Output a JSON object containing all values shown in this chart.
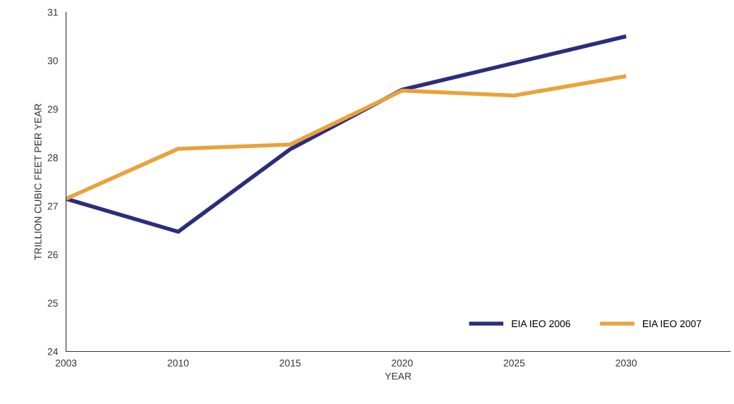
{
  "chart_data": {
    "type": "line",
    "xlabel": "YEAR",
    "ylabel": "TRILLION CUBIC FEET PER YEAR",
    "categories": [
      "2003",
      "2010",
      "2015",
      "2020",
      "2025",
      "2030"
    ],
    "series": [
      {
        "name": "EIA IEO 2006",
        "color": "#2b2d7c",
        "values": [
          27.15,
          26.47,
          28.17,
          29.4,
          29.95,
          30.5
        ]
      },
      {
        "name": "EIA IEO 2007",
        "color": "#e8a33c",
        "values": [
          27.15,
          28.18,
          28.27,
          29.38,
          29.28,
          29.68
        ]
      }
    ],
    "ylim": [
      24,
      31
    ],
    "yticks": [
      24,
      25,
      26,
      27,
      28,
      29,
      30,
      31
    ],
    "grid": false,
    "legend": "bottom right",
    "marker": "none",
    "line_style": "solid"
  }
}
